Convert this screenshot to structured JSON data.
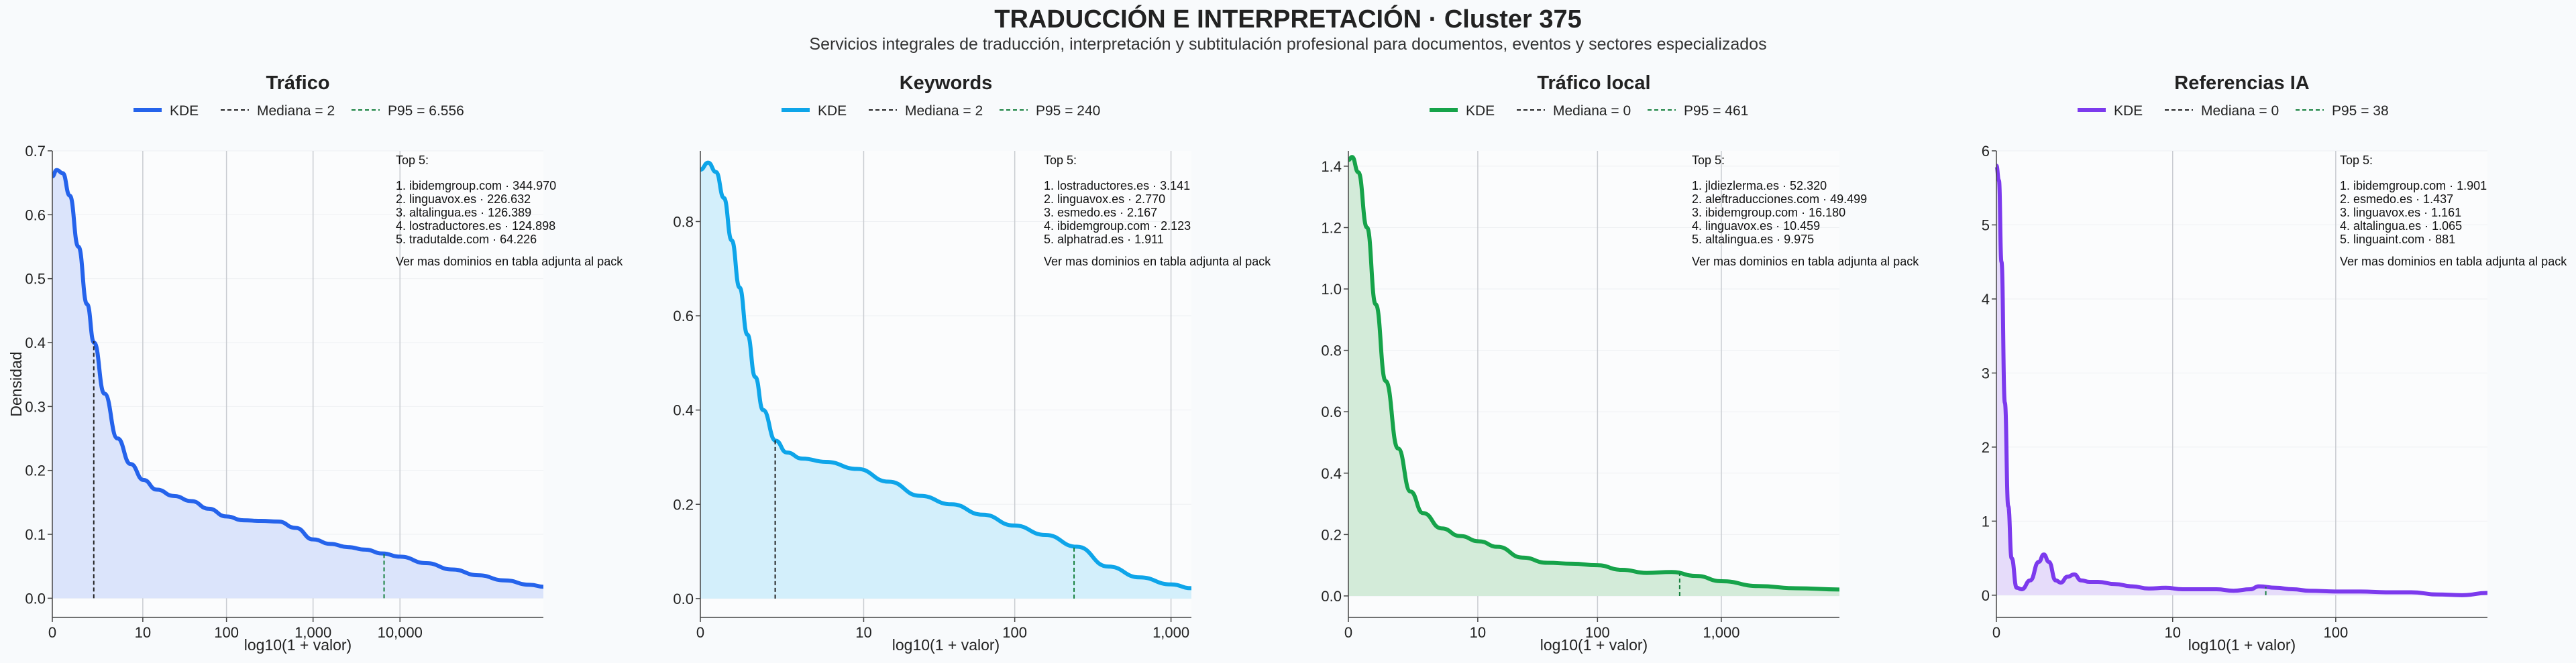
{
  "page": {
    "title": "TRADUCCIÓN E INTERPRETACIÓN · Cluster 375",
    "subtitle": "Servicios integrales de traducción, interpretación y subtitulación profesional para documentos, eventos y sectores especializados"
  },
  "chart_data": [
    {
      "type": "area",
      "title": "Tráfico",
      "xlabel": "log10(1 + valor)",
      "ylabel": "Densidad",
      "color": "#2563eb",
      "fill": "#dbe4fb",
      "xlim": [
        0,
        5.65
      ],
      "ylim": [
        -0.03,
        0.7
      ],
      "yticks": [
        0.0,
        0.1,
        0.2,
        0.3,
        0.4,
        0.5,
        0.6,
        0.7
      ],
      "ytick_labels": [
        "0.0",
        "0.1",
        "0.2",
        "0.3",
        "0.4",
        "0.5",
        "0.6",
        "0.7"
      ],
      "xticks": [
        0,
        1.041,
        2.004,
        3.0,
        4.0
      ],
      "xtick_labels": [
        "0",
        "10",
        "100",
        "1,000",
        "10,000"
      ],
      "legend": [
        "KDE",
        "Mediana = 2",
        "P95 = 6.556"
      ],
      "median_x": 0.477,
      "p95_x": 3.817,
      "series": [
        {
          "name": "KDE",
          "x": [
            0,
            0.05,
            0.12,
            0.2,
            0.3,
            0.4,
            0.48,
            0.6,
            0.75,
            0.9,
            1.05,
            1.2,
            1.4,
            1.6,
            1.8,
            2.0,
            2.2,
            2.4,
            2.6,
            2.8,
            3.0,
            3.2,
            3.4,
            3.6,
            3.8,
            4.0,
            4.3,
            4.6,
            4.9,
            5.2,
            5.5,
            5.65
          ],
          "y": [
            0.66,
            0.67,
            0.665,
            0.63,
            0.55,
            0.46,
            0.4,
            0.32,
            0.25,
            0.21,
            0.185,
            0.17,
            0.16,
            0.152,
            0.14,
            0.128,
            0.122,
            0.121,
            0.12,
            0.11,
            0.092,
            0.085,
            0.08,
            0.076,
            0.07,
            0.065,
            0.055,
            0.045,
            0.036,
            0.028,
            0.021,
            0.018
          ]
        }
      ],
      "top5": {
        "header": "Top 5:",
        "items": [
          "1. ibidemgroup.com · 344.970",
          "2. linguavox.es · 226.632",
          "3. altalingua.es · 126.389",
          "4. lostraductores.es · 124.898",
          "5. tradutalde.com · 64.226"
        ],
        "footer": "Ver mas dominios en tabla adjunta al pack"
      }
    },
    {
      "type": "area",
      "title": "Keywords",
      "xlabel": "log10(1 + valor)",
      "ylabel": "",
      "color": "#0ea5e9",
      "fill": "#d3effb",
      "xlim": [
        0,
        3.13
      ],
      "ylim": [
        -0.04,
        0.95
      ],
      "yticks": [
        0.0,
        0.2,
        0.4,
        0.6,
        0.8
      ],
      "ytick_labels": [
        "0.0",
        "0.2",
        "0.4",
        "0.6",
        "0.8"
      ],
      "xticks": [
        0,
        1.041,
        2.004,
        3.0
      ],
      "xtick_labels": [
        "0",
        "10",
        "100",
        "1,000"
      ],
      "legend": [
        "KDE",
        "Mediana = 2",
        "P95 = 240"
      ],
      "median_x": 0.477,
      "p95_x": 2.382,
      "series": [
        {
          "name": "KDE",
          "x": [
            0,
            0.05,
            0.1,
            0.15,
            0.2,
            0.25,
            0.3,
            0.35,
            0.4,
            0.48,
            0.55,
            0.65,
            0.8,
            1.0,
            1.2,
            1.4,
            1.6,
            1.8,
            2.0,
            2.2,
            2.4,
            2.6,
            2.8,
            3.0,
            3.13
          ],
          "y": [
            0.91,
            0.925,
            0.905,
            0.85,
            0.76,
            0.66,
            0.56,
            0.47,
            0.4,
            0.335,
            0.31,
            0.297,
            0.29,
            0.275,
            0.248,
            0.218,
            0.2,
            0.178,
            0.155,
            0.135,
            0.11,
            0.068,
            0.045,
            0.03,
            0.022
          ]
        }
      ],
      "top5": {
        "header": "Top 5:",
        "items": [
          "1. lostraductores.es · 3.141",
          "2. linguavox.es · 2.770",
          "3. esmedo.es · 2.167",
          "4. ibidemgroup.com · 2.123",
          "5. alphatrad.es · 1.911"
        ],
        "footer": "Ver mas dominios en tabla adjunta al pack"
      }
    },
    {
      "type": "area",
      "title": "Tráfico local",
      "xlabel": "log10(1 + valor)",
      "ylabel": "",
      "color": "#16a34a",
      "fill": "#d3ebd9",
      "xlim": [
        0,
        3.95
      ],
      "ylim": [
        -0.07,
        1.45
      ],
      "yticks": [
        0.0,
        0.2,
        0.4,
        0.6,
        0.8,
        1.0,
        1.2,
        1.4
      ],
      "ytick_labels": [
        "0.0",
        "0.2",
        "0.4",
        "0.6",
        "0.8",
        "1.0",
        "1.2",
        "1.4"
      ],
      "xticks": [
        0,
        1.041,
        2.004,
        3.0
      ],
      "xtick_labels": [
        "0",
        "10",
        "100",
        "1,000"
      ],
      "legend": [
        "KDE",
        "Mediana = 0",
        "P95 = 461"
      ],
      "median_x": 0,
      "p95_x": 2.665,
      "series": [
        {
          "name": "KDE",
          "x": [
            0,
            0.03,
            0.08,
            0.15,
            0.22,
            0.3,
            0.4,
            0.5,
            0.6,
            0.75,
            0.9,
            1.05,
            1.2,
            1.4,
            1.6,
            1.8,
            2.0,
            2.2,
            2.4,
            2.6,
            2.8,
            3.0,
            3.3,
            3.6,
            3.95
          ],
          "y": [
            1.42,
            1.43,
            1.38,
            1.2,
            0.95,
            0.7,
            0.48,
            0.34,
            0.27,
            0.22,
            0.195,
            0.178,
            0.16,
            0.125,
            0.108,
            0.105,
            0.1,
            0.085,
            0.075,
            0.078,
            0.065,
            0.048,
            0.032,
            0.025,
            0.021
          ]
        }
      ],
      "top5": {
        "header": "Top 5:",
        "items": [
          "1. jldiezlerma.es · 52.320",
          "2. aleftraducciones.com · 49.499",
          "3. ibidemgroup.com · 16.180",
          "4. linguavox.es · 10.459",
          "5. altalingua.es · 9.975"
        ],
        "footer": "Ver mas dominios en tabla adjunta al pack"
      }
    },
    {
      "type": "area",
      "title": "Referencias IA",
      "xlabel": "log10(1 + valor)",
      "ylabel": "",
      "color": "#7c3aed",
      "fill": "#e6dcfa",
      "xlim": [
        0,
        2.9
      ],
      "ylim": [
        -0.3,
        6.0
      ],
      "yticks": [
        0,
        1,
        2,
        3,
        4,
        5,
        6
      ],
      "ytick_labels": [
        "0",
        "1",
        "2",
        "3",
        "4",
        "5",
        "6"
      ],
      "xticks": [
        0,
        1.041,
        2.004
      ],
      "xtick_labels": [
        "0",
        "10",
        "100"
      ],
      "legend": [
        "KDE",
        "Mediana = 0",
        "P95 = 38"
      ],
      "median_x": 0,
      "p95_x": 1.591,
      "series": [
        {
          "name": "KDE",
          "x": [
            0,
            0.015,
            0.03,
            0.05,
            0.07,
            0.09,
            0.12,
            0.15,
            0.2,
            0.25,
            0.28,
            0.31,
            0.35,
            0.38,
            0.42,
            0.46,
            0.5,
            0.55,
            0.6,
            0.7,
            0.8,
            0.9,
            1.0,
            1.1,
            1.2,
            1.3,
            1.4,
            1.5,
            1.55,
            1.65,
            1.75,
            1.85,
            2.0,
            2.15,
            2.3,
            2.45,
            2.6,
            2.75,
            2.9
          ],
          "y": [
            5.8,
            5.6,
            4.5,
            2.6,
            1.2,
            0.5,
            0.1,
            0.08,
            0.2,
            0.45,
            0.55,
            0.45,
            0.2,
            0.17,
            0.25,
            0.28,
            0.2,
            0.18,
            0.18,
            0.15,
            0.12,
            0.09,
            0.1,
            0.08,
            0.08,
            0.08,
            0.06,
            0.08,
            0.12,
            0.1,
            0.08,
            0.06,
            0.05,
            0.05,
            0.04,
            0.04,
            0.01,
            0.0,
            0.03
          ]
        }
      ],
      "top5": {
        "header": "Top 5:",
        "items": [
          "1. ibidemgroup.com · 1.901",
          "2. esmedo.es · 1.437",
          "3. linguavox.es · 1.161",
          "4. altalingua.es · 1.065",
          "5. linguaint.com · 881"
        ],
        "footer": "Ver mas dominios en tabla adjunta al pack"
      }
    }
  ]
}
